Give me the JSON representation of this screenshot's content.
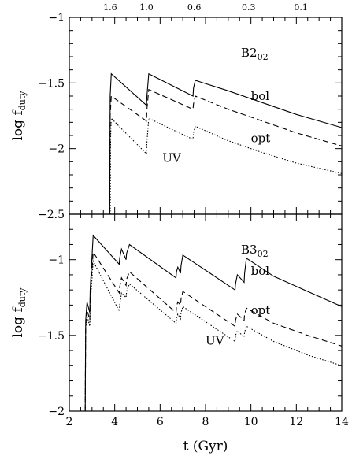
{
  "chart_data": [
    {
      "type": "line",
      "panel": "top",
      "panel_label": "B2",
      "panel_label_subscript": "02",
      "ylabel": "log f",
      "ylabel_subscript": "duty",
      "xlim": [
        2,
        14
      ],
      "ylim": [
        -2.5,
        -1
      ],
      "yticks": [
        -2.5,
        -2,
        -1.5,
        -1
      ],
      "ytick_labels": [
        "−2.5",
        "−2",
        "−1.5",
        "−1"
      ],
      "top_axis_ticks": [
        {
          "x": 3.8,
          "label": "1.6"
        },
        {
          "x": 5.4,
          "label": "1.0"
        },
        {
          "x": 7.5,
          "label": "0.6"
        },
        {
          "x": 9.9,
          "label": "0.3"
        },
        {
          "x": 12.2,
          "label": "0.1"
        }
      ],
      "series": [
        {
          "name": "bol",
          "style": "solid",
          "label_at": {
            "x": 10.0,
            "y": -1.63
          },
          "x": [
            3.78,
            3.8,
            3.85,
            5.4,
            5.42,
            5.5,
            7.45,
            7.47,
            7.55,
            9.0,
            10.5,
            12.0,
            14.0
          ],
          "y": [
            -2.5,
            -1.6,
            -1.43,
            -1.67,
            -1.6,
            -1.43,
            -1.6,
            -1.54,
            -1.48,
            -1.56,
            -1.65,
            -1.74,
            -1.84
          ]
        },
        {
          "name": "opt",
          "style": "dashed",
          "label_at": {
            "x": 10.0,
            "y": -1.95
          },
          "x": [
            3.78,
            3.8,
            3.85,
            5.4,
            5.42,
            5.5,
            7.45,
            7.47,
            7.55,
            9.0,
            10.5,
            12.0,
            14.0
          ],
          "y": [
            -2.5,
            -1.75,
            -1.6,
            -1.79,
            -1.7,
            -1.55,
            -1.7,
            -1.66,
            -1.6,
            -1.7,
            -1.79,
            -1.88,
            -1.98
          ]
        },
        {
          "name": "UV",
          "style": "dotted",
          "label_at": {
            "x": 6.1,
            "y": -2.1
          },
          "x": [
            3.8,
            3.82,
            3.85,
            5.4,
            5.42,
            5.5,
            7.45,
            7.47,
            7.55,
            9.0,
            10.5,
            12.0,
            14.0
          ],
          "y": [
            -2.5,
            -1.9,
            -1.77,
            -2.04,
            -1.95,
            -1.77,
            -1.93,
            -1.88,
            -1.83,
            -1.94,
            -2.03,
            -2.11,
            -2.19
          ]
        }
      ]
    },
    {
      "type": "line",
      "panel": "bottom",
      "panel_label": "B3",
      "panel_label_subscript": "02",
      "ylabel": "log f",
      "ylabel_subscript": "duty",
      "xlabel": "t (Gyr)",
      "xlim": [
        2,
        14
      ],
      "ylim": [
        -2,
        -0.7
      ],
      "xticks": [
        2,
        4,
        6,
        8,
        10,
        12,
        14
      ],
      "xtick_labels": [
        "2",
        "4",
        "6",
        "8",
        "10",
        "12",
        "14"
      ],
      "yticks": [
        -2,
        -1.5,
        -1
      ],
      "ytick_labels": [
        "−2",
        "−1.5",
        "−1"
      ],
      "series": [
        {
          "name": "bol",
          "style": "solid",
          "label_at": {
            "x": 10.0,
            "y": -1.1
          },
          "x": [
            2.7,
            2.72,
            2.78,
            2.9,
            2.92,
            3.05,
            4.2,
            4.22,
            4.3,
            4.5,
            4.52,
            4.65,
            6.7,
            6.72,
            6.78,
            6.9,
            6.92,
            7.0,
            9.3,
            9.32,
            9.4,
            9.7,
            9.72,
            9.8,
            11.0,
            12.5,
            14.0
          ],
          "y": [
            -2.0,
            -1.4,
            -1.28,
            -1.35,
            -1.2,
            -0.84,
            -1.03,
            -0.99,
            -0.93,
            -1.0,
            -0.96,
            -0.9,
            -1.12,
            -1.08,
            -1.05,
            -1.09,
            -1.04,
            -0.97,
            -1.2,
            -1.16,
            -1.1,
            -1.15,
            -1.09,
            -0.99,
            -1.11,
            -1.21,
            -1.31
          ]
        },
        {
          "name": "opt",
          "style": "dashed",
          "label_at": {
            "x": 10.0,
            "y": -1.36
          },
          "x": [
            2.7,
            2.72,
            2.78,
            2.9,
            2.92,
            3.05,
            4.2,
            4.22,
            4.3,
            4.5,
            4.52,
            4.65,
            6.7,
            6.72,
            6.78,
            6.9,
            6.92,
            7.0,
            9.3,
            9.32,
            9.4,
            9.7,
            9.72,
            9.8,
            11.0,
            12.5,
            14.0
          ],
          "y": [
            -2.0,
            -1.43,
            -1.33,
            -1.4,
            -1.25,
            -0.95,
            -1.22,
            -1.18,
            -1.12,
            -1.17,
            -1.13,
            -1.08,
            -1.35,
            -1.31,
            -1.28,
            -1.3,
            -1.26,
            -1.21,
            -1.44,
            -1.4,
            -1.36,
            -1.4,
            -1.36,
            -1.32,
            -1.42,
            -1.5,
            -1.57
          ]
        },
        {
          "name": "UV",
          "style": "dotted",
          "label_at": {
            "x": 8.0,
            "y": -1.56
          },
          "x": [
            2.7,
            2.72,
            2.78,
            2.9,
            2.92,
            3.05,
            4.2,
            4.22,
            4.3,
            4.5,
            4.52,
            4.65,
            6.7,
            6.72,
            6.78,
            6.9,
            6.92,
            7.0,
            9.3,
            9.32,
            9.4,
            9.7,
            9.72,
            9.8,
            11.0,
            12.5,
            14.0
          ],
          "y": [
            -2.0,
            -1.46,
            -1.37,
            -1.44,
            -1.3,
            -1.01,
            -1.34,
            -1.3,
            -1.22,
            -1.25,
            -1.21,
            -1.16,
            -1.42,
            -1.39,
            -1.36,
            -1.39,
            -1.35,
            -1.31,
            -1.54,
            -1.5,
            -1.47,
            -1.51,
            -1.48,
            -1.44,
            -1.54,
            -1.63,
            -1.7
          ]
        }
      ]
    }
  ]
}
